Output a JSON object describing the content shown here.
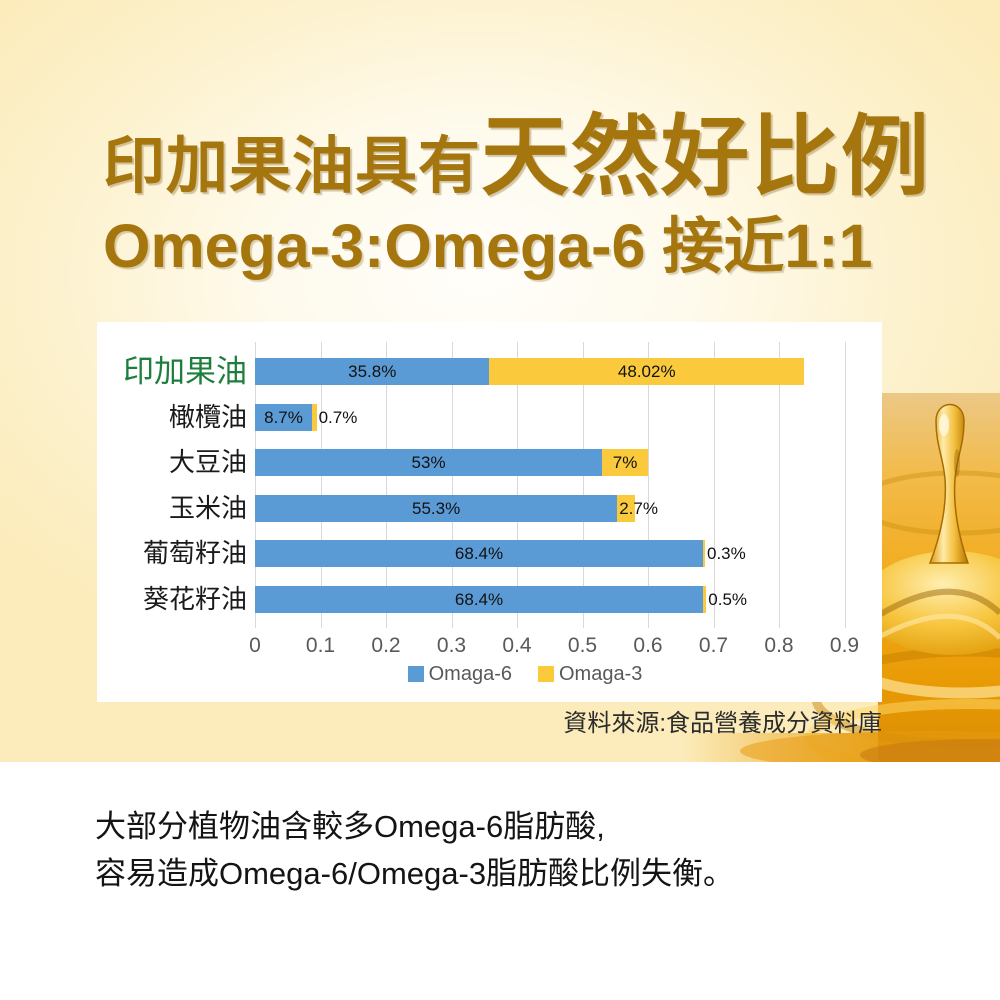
{
  "header": {
    "title_regular": "印加果油具有",
    "title_emphasis": "天然好比例",
    "subtitle": "Omega-3:Omega-6 接近1:1"
  },
  "chart_data": {
    "type": "bar",
    "orientation": "horizontal",
    "stacked": true,
    "grid": true,
    "legend_position": "bottom",
    "categories": [
      "印加果油",
      "橄欖油",
      "大豆油",
      "玉米油",
      "葡萄籽油",
      "葵花籽油"
    ],
    "highlight_category_index": 0,
    "series": [
      {
        "name": "Omaga-6",
        "color": "#5b9bd5",
        "values": [
          35.8,
          8.7,
          53,
          55.3,
          68.4,
          68.4
        ],
        "labels": [
          "35.8%",
          "8.7%",
          "53%",
          "55.3%",
          "68.4%",
          "68.4%"
        ]
      },
      {
        "name": "Omaga-3",
        "color": "#fac93c",
        "values": [
          48.02,
          0.7,
          7,
          2.7,
          0.3,
          0.5
        ],
        "labels": [
          "48.02%",
          "0.7%",
          "7%",
          "2.7%",
          "0.3%",
          "0.5%"
        ]
      }
    ],
    "x_ticks": [
      "0",
      "0.1",
      "0.2",
      "0.3",
      "0.4",
      "0.5",
      "0.6",
      "0.7",
      "0.8",
      "0.9"
    ],
    "xlim": [
      0,
      0.95
    ],
    "x_tick_step": 0.1
  },
  "source_note": "資料來源:食品營養成分資料庫",
  "body_text": {
    "line1": "大部分植物油含較多Omega-6脂肪酸,",
    "line2": "容易造成Omega-6/Omega-3脂肪酸比例失衡。"
  },
  "colors": {
    "title_brown": "#a5760d",
    "highlight_green": "#1e7e3e",
    "omega6_blue": "#5b9bd5",
    "omega3_yellow": "#fac93c",
    "gridline_gray": "#d9d9d9",
    "axis_text_gray": "#595959",
    "background_cream": "#fcecbc"
  }
}
